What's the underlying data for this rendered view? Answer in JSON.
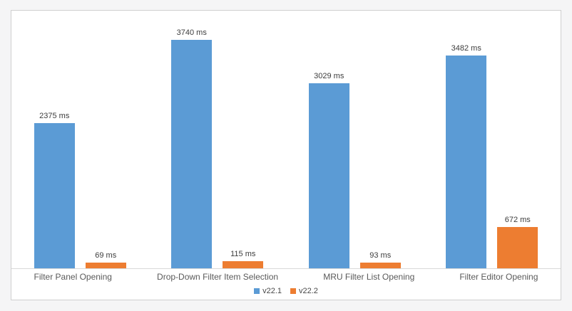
{
  "chart_data": {
    "type": "bar",
    "title": "",
    "unit": "ms",
    "categories": [
      "Filter Panel Opening",
      "Drop-Down Filter Item Selection",
      "MRU Filter List Opening",
      "Filter Editor Opening"
    ],
    "series": [
      {
        "name": "v22.1",
        "color": "#5B9BD5",
        "values": [
          2375,
          3740,
          3029,
          3482
        ],
        "value_labels": [
          "2375 ms",
          "3740 ms",
          "3029 ms",
          "3482 ms"
        ]
      },
      {
        "name": "v22.2",
        "color": "#ED7D31",
        "values": [
          69,
          115,
          93,
          672
        ],
        "value_labels": [
          "69 ms",
          "115 ms",
          "93 ms",
          "672 ms"
        ]
      }
    ],
    "ylim": [
      0,
      4216
    ],
    "grid": false,
    "legend_position": "bottom-center"
  },
  "colors": {
    "page_background": "#f5f5f6",
    "panel_background": "#ffffff",
    "panel_border": "#cfcfcf",
    "axis_line": "#d9d9d9",
    "value_label_text": "#3c3c3c",
    "category_label_text": "#5a5a5a",
    "legend_text": "#474747"
  }
}
